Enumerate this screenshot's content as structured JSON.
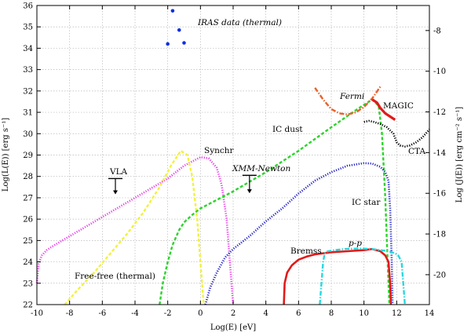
{
  "chart_data": {
    "type": "line",
    "xlabel": "Log(E) [eV]",
    "ylabel": "Log(L(E)) [erg s⁻¹]",
    "y2label": "Log (J(E)) [erg cm⁻² s⁻¹]",
    "xlim": [
      -10,
      14
    ],
    "ylim": [
      22,
      36
    ],
    "y2lim": [
      -21.47,
      -6.77
    ],
    "grid": true,
    "x_ticks": [
      "-10",
      "-8",
      "-6",
      "-4",
      "-2",
      "0",
      "2",
      "4",
      "6",
      "8",
      "10",
      "12",
      "14"
    ],
    "y_ticks": [
      "22",
      "23",
      "24",
      "25",
      "26",
      "27",
      "28",
      "29",
      "30",
      "31",
      "32",
      "33",
      "34",
      "35",
      "36"
    ],
    "y2_ticks": [
      "-20",
      "-18",
      "-16",
      "-14",
      "-12",
      "-10",
      "-8"
    ],
    "x_tick_values": [
      -10,
      -8,
      -6,
      -4,
      -2,
      0,
      2,
      4,
      6,
      8,
      10,
      12,
      14
    ],
    "y_tick_values": [
      22,
      23,
      24,
      25,
      26,
      27,
      28,
      29,
      30,
      31,
      32,
      33,
      34,
      35,
      36
    ],
    "y2_tick_values": [
      -20,
      -18,
      -16,
      -14,
      -12,
      -10,
      -8
    ],
    "series": [
      {
        "name": "Synchr",
        "color": "#e83ee8",
        "style": "dotted",
        "x": [
          -10.0,
          -9.9,
          -9.7,
          -9.4,
          -9.0,
          -8.0,
          -6.0,
          -4.0,
          -2.0,
          -1.0,
          0.0,
          0.5,
          1.0,
          1.3,
          1.6,
          1.8,
          1.9,
          2.0
        ],
        "y": [
          23.0,
          23.9,
          24.3,
          24.55,
          24.75,
          25.2,
          26.1,
          27.0,
          27.9,
          28.5,
          28.9,
          28.85,
          28.4,
          27.6,
          26.0,
          24.0,
          23.0,
          22.0
        ]
      },
      {
        "name": "Free-free (thermal)",
        "color": "#f2f23a",
        "style": "dashed",
        "x": [
          -8.3,
          -7.5,
          -6.5,
          -5.5,
          -4.5,
          -3.5,
          -2.5,
          -1.8,
          -1.2,
          -0.8,
          -0.5,
          -0.2,
          0.0,
          0.2
        ],
        "y": [
          22.0,
          22.7,
          23.5,
          24.4,
          25.3,
          26.3,
          27.5,
          28.5,
          29.2,
          29.0,
          28.0,
          26.0,
          24.0,
          22.0
        ]
      },
      {
        "name": "IC dust",
        "color": "#2bd42b",
        "style": "dashed",
        "x": [
          -2.5,
          -2.3,
          -2.0,
          -1.7,
          -1.3,
          -1.0,
          -0.5,
          0.0,
          2.0,
          4.0,
          6.0,
          8.0,
          9.5,
          10.5,
          10.9,
          11.1,
          11.3,
          11.4,
          11.5,
          11.55
        ],
        "y": [
          22.0,
          23.0,
          24.0,
          24.8,
          25.5,
          25.85,
          26.2,
          26.5,
          27.3,
          28.2,
          29.2,
          30.3,
          31.1,
          31.6,
          31.3,
          30.0,
          27.0,
          25.0,
          23.0,
          22.0
        ]
      },
      {
        "name": "IC star",
        "color": "#2323c8",
        "style": "dotted",
        "x": [
          0.3,
          0.6,
          1.0,
          1.5,
          2.0,
          3.0,
          4.0,
          5.0,
          6.0,
          7.0,
          8.0,
          9.0,
          10.0,
          10.5,
          11.0,
          11.3,
          11.5,
          11.6,
          11.7,
          11.75
        ],
        "y": [
          22.0,
          22.8,
          23.5,
          24.2,
          24.6,
          25.2,
          25.9,
          26.5,
          27.2,
          27.8,
          28.2,
          28.5,
          28.62,
          28.6,
          28.45,
          28.2,
          27.8,
          26.5,
          24.0,
          22.0
        ]
      },
      {
        "name": "Bremss",
        "color": "#e21a1a",
        "style": "solid",
        "x": [
          5.1,
          5.15,
          5.3,
          5.6,
          6.0,
          6.5,
          7.0,
          8.0,
          9.0,
          10.0,
          10.5,
          11.0,
          11.3,
          11.5,
          11.6,
          11.65
        ],
        "y": [
          22.0,
          23.0,
          23.5,
          23.85,
          24.1,
          24.25,
          24.35,
          24.45,
          24.5,
          24.55,
          24.6,
          24.5,
          24.3,
          24.0,
          23.0,
          22.0
        ]
      },
      {
        "name": "p-p",
        "color": "#27d8e0",
        "style": "dashdot",
        "x": [
          7.3,
          7.4,
          7.5,
          7.6,
          7.8,
          8.2,
          8.8,
          9.5,
          10.0,
          10.5,
          11.0,
          11.5,
          11.9,
          12.1,
          12.3,
          12.4,
          12.5
        ],
        "y": [
          22.0,
          23.0,
          24.0,
          24.4,
          24.5,
          24.55,
          24.6,
          24.62,
          24.62,
          24.6,
          24.55,
          24.5,
          24.4,
          24.3,
          24.0,
          23.0,
          22.0
        ]
      },
      {
        "name": "Fermi",
        "color": "#e8622a",
        "style": "dashdot",
        "x": [
          7.0,
          7.5,
          8.0,
          8.5,
          9.0,
          9.5,
          10.0,
          10.5,
          11.0
        ],
        "y": [
          32.15,
          31.6,
          31.15,
          30.95,
          30.9,
          31.0,
          31.25,
          31.65,
          32.2
        ]
      },
      {
        "name": "MAGIC",
        "color": "#e21a1a",
        "style": "thick",
        "x": [
          10.5,
          10.8,
          11.0,
          11.3,
          11.6,
          11.9
        ],
        "y": [
          31.6,
          31.45,
          31.2,
          30.95,
          30.8,
          30.65
        ]
      },
      {
        "name": "CTA",
        "color": "#000000",
        "style": "dotted",
        "x": [
          10.0,
          10.3,
          10.6,
          11.0,
          11.4,
          11.8,
          12.0,
          12.2,
          12.5,
          12.8,
          13.2,
          13.6,
          14.0
        ],
        "y": [
          30.55,
          30.6,
          30.55,
          30.45,
          30.3,
          30.0,
          29.6,
          29.45,
          29.4,
          29.45,
          29.6,
          29.85,
          30.2
        ]
      }
    ],
    "points": {
      "name": "IRAS data (thermal)",
      "color": "#1030e0",
      "x": [
        -1.7,
        -1.3,
        -1.0,
        -2.0
      ],
      "y": [
        35.75,
        34.85,
        34.25,
        34.2
      ]
    },
    "upper_limits": [
      {
        "name": "VLA",
        "x": -5.2,
        "y": 27.9,
        "arrow_to": 27.2
      },
      {
        "name": "XMM-Newton",
        "x": 3.0,
        "y": 28.05,
        "arrow_to": 27.25
      }
    ],
    "annotations": {
      "iras": "IRAS data (thermal)",
      "fermi": "Fermi",
      "magic": "MAGIC",
      "ic_dust": "IC dust",
      "cta": "CTA",
      "synchr": "Synchr",
      "vla": "VLA",
      "xmm": "XMM-Newton",
      "ic_star": "IC star",
      "pp": "p-p",
      "bremss": "Bremss",
      "free_free": "Free-free (thermal)"
    }
  }
}
